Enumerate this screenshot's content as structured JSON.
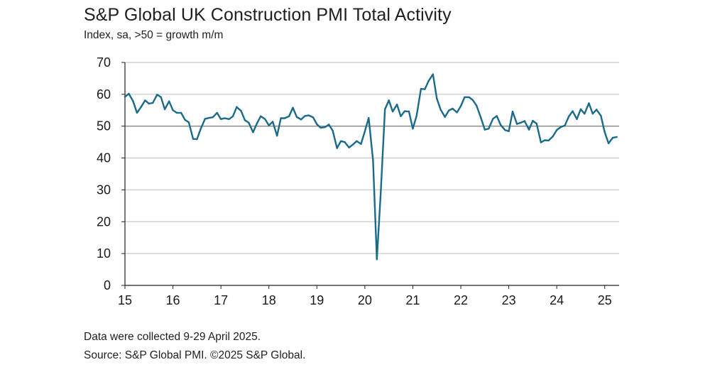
{
  "title": "S&P Global UK Construction PMI Total Activity",
  "subtitle": "Index, sa, >50 = growth m/m",
  "notes": {
    "collected": "Data were collected 9-29 April 2025.",
    "source": "Source: S&P Global PMI. ©2025 S&P Global."
  },
  "colors": {
    "line": "#1a6a8a",
    "grid": "#bdbdbd",
    "axis": "#222222"
  },
  "chart_data": {
    "type": "line",
    "title": "S&P Global UK Construction PMI Total Activity",
    "ylabel": "",
    "xlabel": "",
    "ylim": [
      0,
      70
    ],
    "yticks": [
      0,
      10,
      20,
      30,
      40,
      50,
      60,
      70
    ],
    "xlim": [
      2015.0,
      2025.3
    ],
    "xticks": [
      {
        "x": 2015,
        "label": "15"
      },
      {
        "x": 2016,
        "label": "16"
      },
      {
        "x": 2017,
        "label": "17"
      },
      {
        "x": 2018,
        "label": "18"
      },
      {
        "x": 2019,
        "label": "19"
      },
      {
        "x": 2020,
        "label": "20"
      },
      {
        "x": 2021,
        "label": "21"
      },
      {
        "x": 2022,
        "label": "22"
      },
      {
        "x": 2023,
        "label": "23"
      },
      {
        "x": 2024,
        "label": "24"
      },
      {
        "x": 2025,
        "label": "25"
      }
    ],
    "grid": true,
    "reference_line": 50,
    "series": [
      {
        "x": [
          2015.0,
          2015.08,
          2015.17,
          2015.25,
          2015.33,
          2015.42,
          2015.5,
          2015.58,
          2015.67,
          2015.75,
          2015.83,
          2015.92,
          2016.0,
          2016.08,
          2016.17,
          2016.25,
          2016.33,
          2016.42,
          2016.5,
          2016.58,
          2016.67,
          2016.75,
          2016.83,
          2016.92,
          2017.0,
          2017.08,
          2017.17,
          2017.25,
          2017.33,
          2017.42,
          2017.5,
          2017.58,
          2017.67,
          2017.75,
          2017.83,
          2017.92,
          2018.0,
          2018.08,
          2018.17,
          2018.25,
          2018.33,
          2018.42,
          2018.5,
          2018.58,
          2018.67,
          2018.75,
          2018.83,
          2018.92,
          2019.0,
          2019.08,
          2019.17,
          2019.25,
          2019.33,
          2019.42,
          2019.5,
          2019.58,
          2019.67,
          2019.75,
          2019.83,
          2019.92,
          2020.0,
          2020.08,
          2020.17,
          2020.25,
          2020.33,
          2020.42,
          2020.5,
          2020.58,
          2020.67,
          2020.75,
          2020.83,
          2020.92,
          2021.0,
          2021.08,
          2021.17,
          2021.25,
          2021.33,
          2021.42,
          2021.5,
          2021.58,
          2021.67,
          2021.75,
          2021.83,
          2021.92,
          2022.0,
          2022.08,
          2022.17,
          2022.25,
          2022.33,
          2022.42,
          2022.5,
          2022.58,
          2022.67,
          2022.75,
          2022.83,
          2022.92,
          2023.0,
          2023.08,
          2023.17,
          2023.25,
          2023.33,
          2023.42,
          2023.5,
          2023.58,
          2023.67,
          2023.75,
          2023.83,
          2023.92,
          2024.0,
          2024.08,
          2024.17,
          2024.25,
          2024.33,
          2024.42,
          2024.5,
          2024.58,
          2024.67,
          2024.75,
          2024.83,
          2024.92,
          2025.0,
          2025.08,
          2025.17,
          2025.25
        ],
        "values": [
          59.2,
          60.2,
          57.8,
          54.2,
          55.9,
          58.1,
          57.1,
          57.3,
          59.9,
          59.1,
          55.3,
          57.8,
          55.0,
          54.2,
          54.2,
          52.0,
          51.2,
          46.0,
          45.9,
          49.2,
          52.3,
          52.6,
          52.8,
          54.2,
          52.2,
          52.5,
          52.2,
          53.1,
          56.0,
          54.8,
          51.9,
          51.1,
          48.1,
          50.8,
          53.1,
          52.2,
          50.2,
          51.4,
          47.0,
          52.5,
          52.5,
          53.1,
          55.8,
          52.9,
          52.1,
          53.2,
          53.4,
          52.8,
          50.6,
          49.5,
          49.7,
          50.5,
          48.6,
          43.1,
          45.3,
          45.0,
          43.3,
          44.2,
          45.3,
          44.4,
          48.4,
          52.6,
          39.3,
          8.2,
          28.9,
          55.3,
          58.1,
          54.6,
          56.8,
          53.1,
          54.7,
          54.6,
          49.2,
          53.3,
          61.7,
          61.6,
          64.2,
          66.3,
          58.7,
          55.2,
          52.9,
          54.9,
          55.5,
          54.3,
          56.3,
          59.1,
          59.1,
          58.2,
          56.4,
          52.6,
          48.9,
          49.2,
          52.3,
          53.2,
          50.4,
          48.8,
          48.4,
          54.6,
          50.7,
          51.1,
          51.6,
          48.9,
          51.7,
          50.8,
          44.9,
          45.6,
          45.5,
          46.8,
          48.8,
          49.7,
          50.2,
          53.0,
          54.7,
          52.2,
          55.3,
          53.9,
          57.2,
          53.9,
          55.2,
          53.3,
          48.1,
          44.6,
          46.4,
          46.6
        ]
      }
    ]
  }
}
